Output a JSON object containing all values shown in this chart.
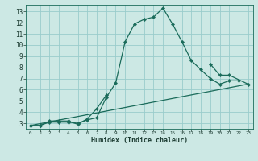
{
  "xlabel": "Humidex (Indice chaleur)",
  "bg_color": "#cce8e4",
  "grid_color": "#99cccc",
  "line_color": "#1a6b5a",
  "xlim": [
    -0.5,
    23.5
  ],
  "ylim": [
    2.5,
    13.6
  ],
  "xticks": [
    0,
    1,
    2,
    3,
    4,
    5,
    6,
    7,
    8,
    9,
    10,
    11,
    12,
    13,
    14,
    15,
    16,
    17,
    18,
    19,
    20,
    21,
    22,
    23
  ],
  "yticks": [
    3,
    4,
    5,
    6,
    7,
    8,
    9,
    10,
    11,
    12,
    13
  ],
  "line1_x": [
    0,
    1,
    2,
    3,
    4,
    5,
    6,
    7,
    8,
    9,
    10,
    11,
    12,
    13,
    14,
    15,
    16,
    17,
    18,
    19,
    20,
    21,
    22
  ],
  "line1_y": [
    2.8,
    2.8,
    3.1,
    3.1,
    3.1,
    3.0,
    3.3,
    3.5,
    5.3,
    6.6,
    10.3,
    11.9,
    12.3,
    12.5,
    13.3,
    11.9,
    10.3,
    8.6,
    7.8,
    7.0,
    6.5,
    6.8,
    6.8
  ],
  "line2_x": [
    0,
    1,
    2,
    3,
    4,
    5,
    6,
    7,
    8,
    19,
    20,
    21,
    23
  ],
  "line2_y": [
    2.8,
    2.8,
    3.2,
    3.2,
    3.2,
    2.9,
    3.4,
    4.3,
    5.5,
    8.3,
    7.3,
    7.3,
    6.5
  ],
  "line3_x": [
    0,
    23
  ],
  "line3_y": [
    2.8,
    6.5
  ]
}
